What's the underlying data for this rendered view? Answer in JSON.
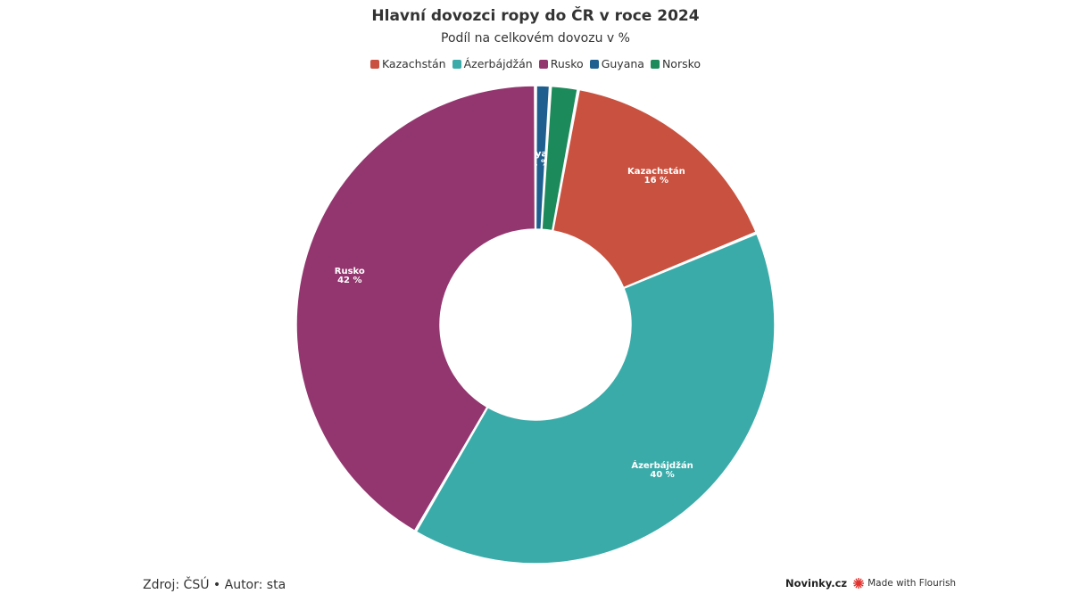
{
  "chart_data": {
    "type": "pie",
    "variant": "donut",
    "title": "Hlavní dovozci ropy do ČR v roce 2024",
    "subtitle": "Podíl na celkovém dovozu v %",
    "legend": {
      "placement": "top-center",
      "entries": [
        {
          "name": "Kazachstán",
          "color": "#c9513f"
        },
        {
          "name": "Ázerbájdžán",
          "color": "#3aaba9"
        },
        {
          "name": "Rusko",
          "color": "#93366f"
        },
        {
          "name": "Guyana",
          "color": "#1f5f8f"
        },
        {
          "name": "Norsko",
          "color": "#1c8a5a"
        }
      ]
    },
    "slices": [
      {
        "name": "Guyana",
        "value": 1,
        "label": "1 %",
        "color": "#1f5f8f"
      },
      {
        "name": "Norsko",
        "value": 1.9,
        "label": "",
        "color": "#1c8a5a"
      },
      {
        "name": "Kazachstán",
        "value": 16,
        "label": "16 %",
        "color": "#c9513f"
      },
      {
        "name": "Ázerbájdžán",
        "value": 40,
        "label": "40 %",
        "color": "#3aaba9"
      },
      {
        "name": "Rusko",
        "value": 42,
        "label": "42 %",
        "color": "#93366f"
      }
    ]
  },
  "footer": {
    "source": "Zdroj: ČSÚ • Autor: sta",
    "brand": "Novinky.cz",
    "made_with": "Made with Flourish",
    "flourish_color": "#e0332f"
  }
}
